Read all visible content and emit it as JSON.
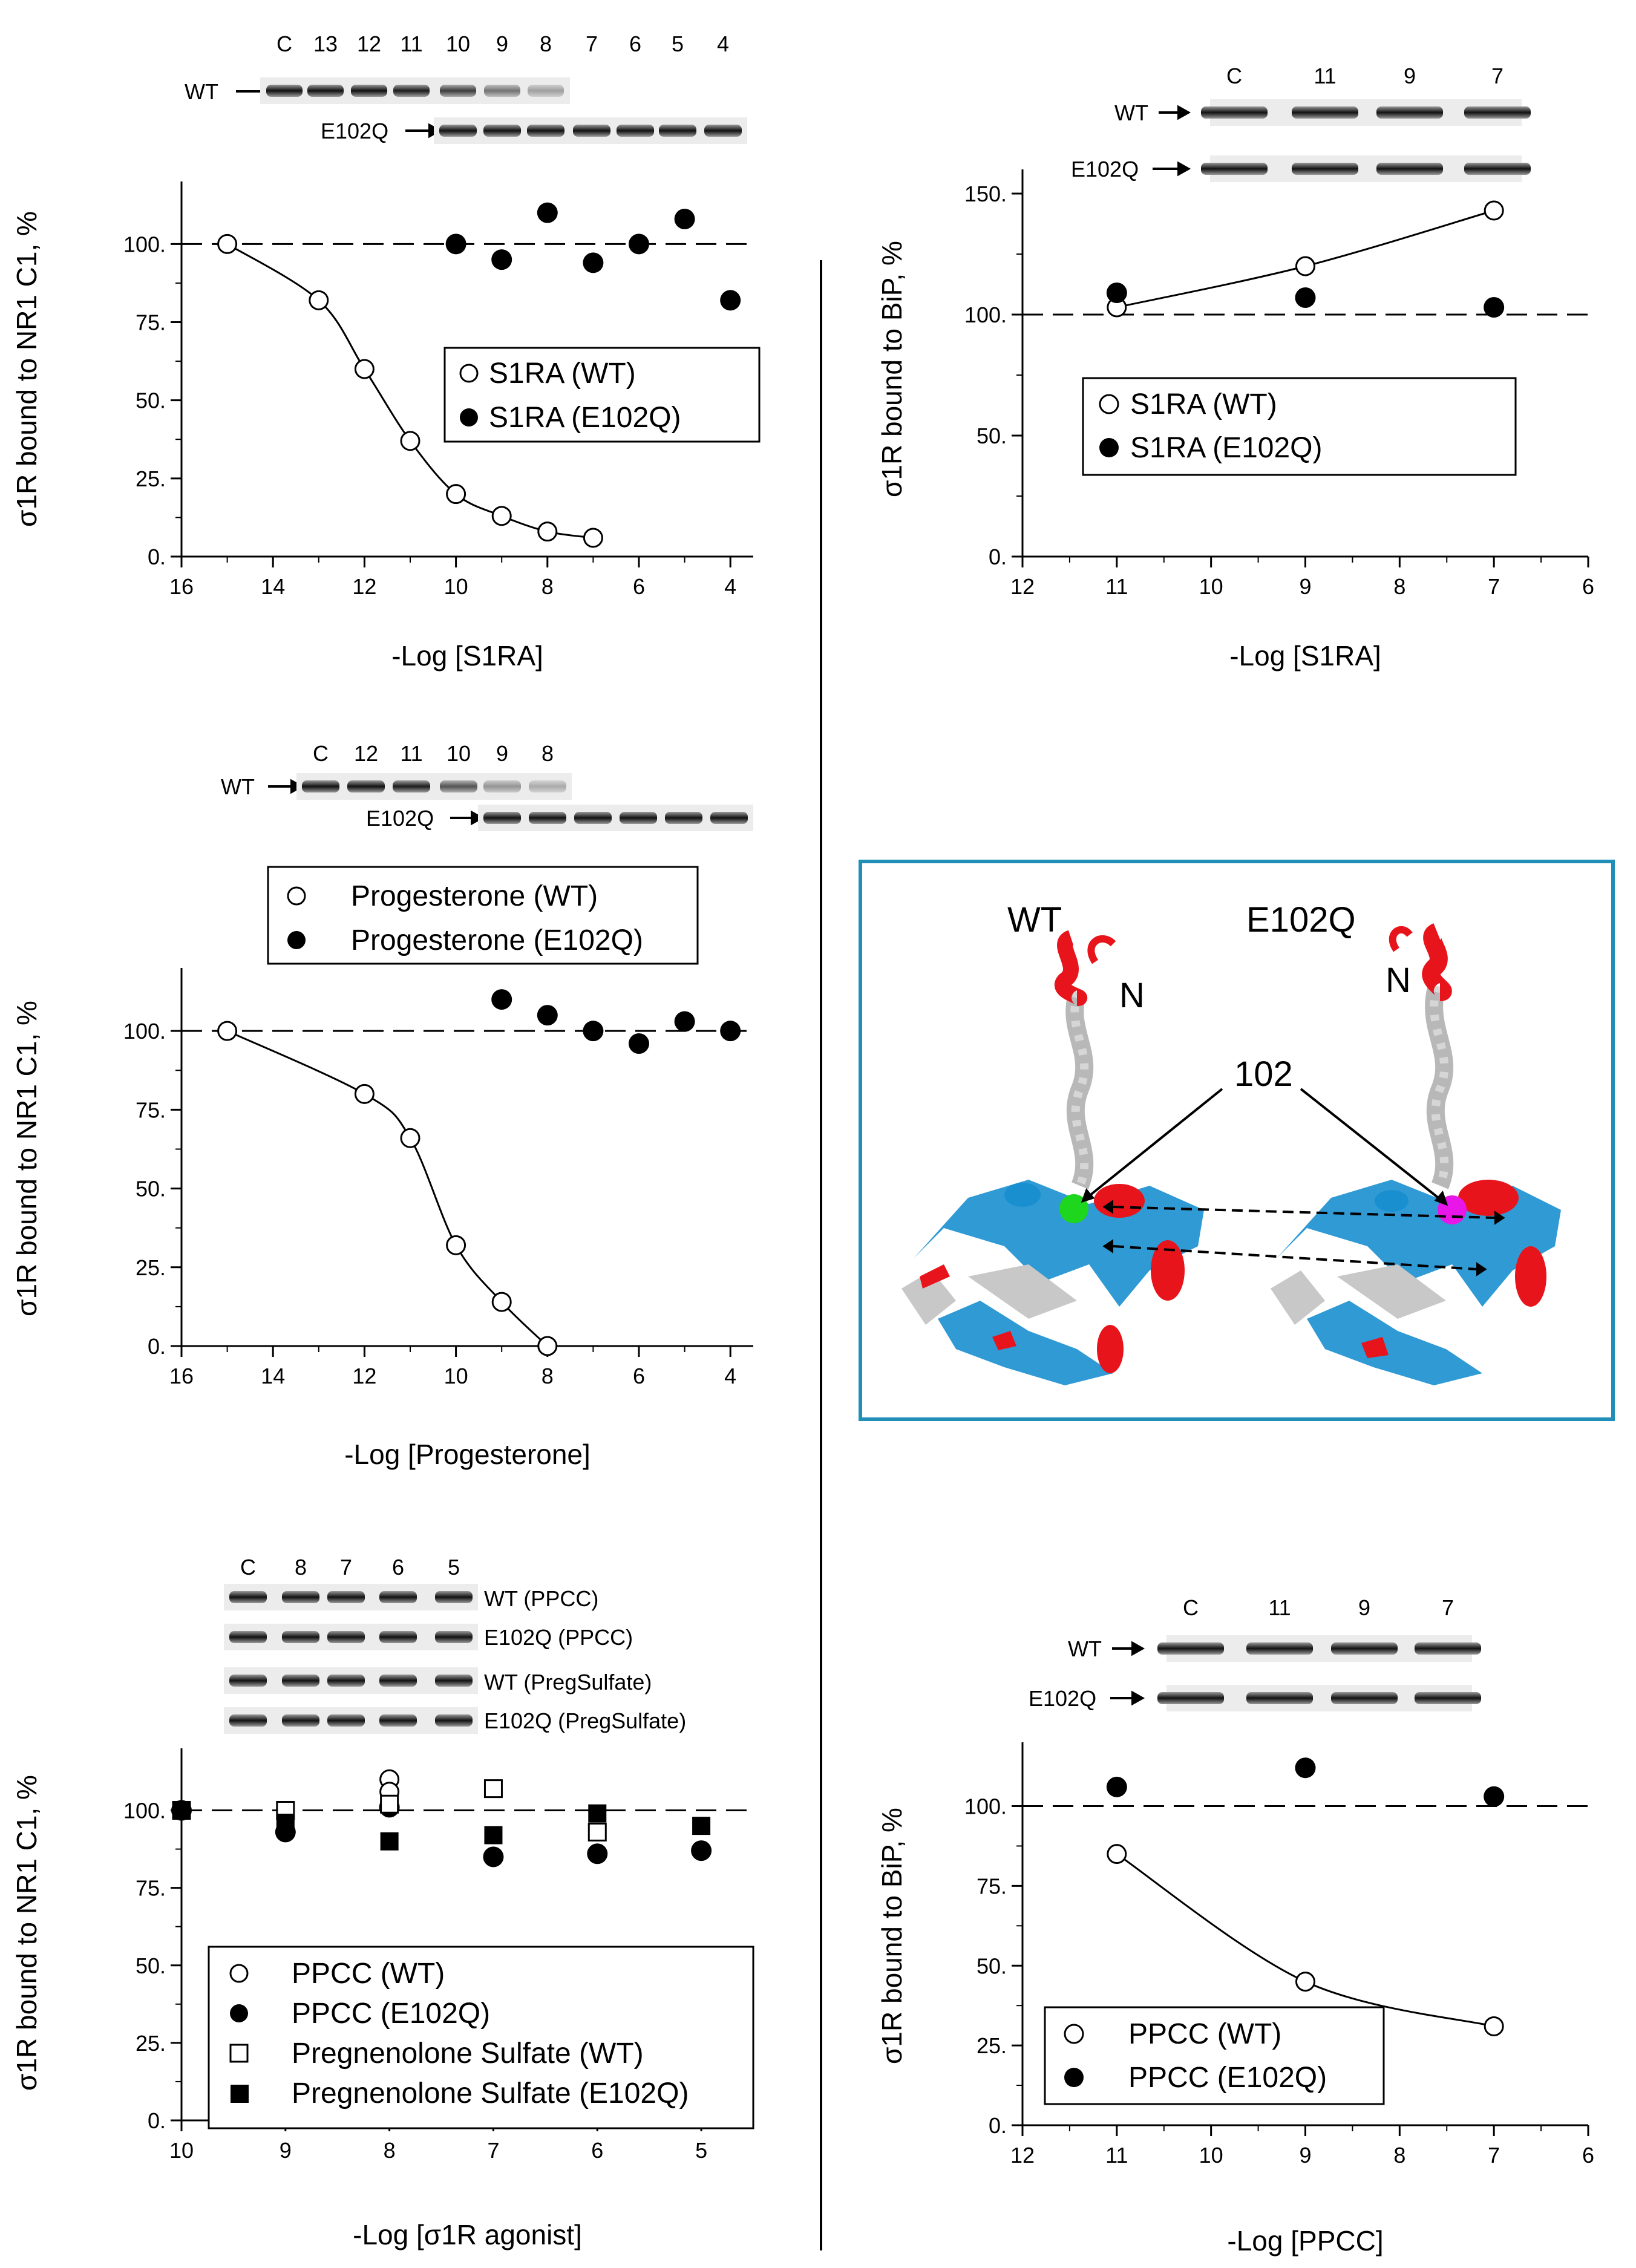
{
  "chart_data": [
    {
      "id": "p1",
      "type": "scatter",
      "xlabel": "-Log [S1RA]",
      "ylabel": "σ1R bound to NR1 C1, %",
      "xlim": [
        16,
        3.5
      ],
      "ylim": [
        0,
        120
      ],
      "xticks": [
        "16",
        "14",
        "12",
        "10",
        "8",
        "6",
        "4"
      ],
      "yticks": [
        "0.",
        "25.",
        "50.",
        "75.",
        "100."
      ],
      "reference_line": 100,
      "series": [
        {
          "name": "S1RA (WT)",
          "marker": "open-circle",
          "fit": "sigmoid",
          "x": [
            15,
            13,
            12,
            11,
            10,
            9,
            8,
            7
          ],
          "y": [
            100,
            82,
            60,
            37,
            20,
            13,
            8,
            6
          ]
        },
        {
          "name": "S1RA (E102Q)",
          "marker": "filled-circle",
          "x": [
            10,
            9,
            8,
            7,
            6,
            5,
            4
          ],
          "y": [
            100,
            95,
            110,
            94,
            100,
            108,
            82
          ]
        }
      ],
      "blot": {
        "lanes": [
          "C",
          "13",
          "12",
          "11",
          "10",
          "9",
          "8",
          "7",
          "6",
          "5",
          "4"
        ],
        "rows": [
          {
            "label": "WT",
            "lanes": 7
          },
          {
            "label": "E102Q",
            "lanes": 7
          }
        ]
      }
    },
    {
      "id": "p2",
      "type": "scatter",
      "xlabel": "-Log [S1RA]",
      "ylabel": "σ1R bound to BiP, %",
      "xlim": [
        12,
        6
      ],
      "ylim": [
        0,
        160
      ],
      "xticks": [
        "12",
        "11",
        "10",
        "9",
        "8",
        "7",
        "6"
      ],
      "yticks": [
        "0.",
        "50.",
        "100.",
        "150."
      ],
      "reference_line": 100,
      "series": [
        {
          "name": "S1RA (WT)",
          "marker": "open-circle",
          "fit": "curve",
          "x": [
            11,
            9,
            7
          ],
          "y": [
            103,
            120,
            143
          ]
        },
        {
          "name": "S1RA (E102Q)",
          "marker": "filled-circle",
          "x": [
            11,
            9,
            7
          ],
          "y": [
            109,
            107,
            103
          ]
        }
      ],
      "blot": {
        "lanes": [
          "C",
          "11",
          "9",
          "7"
        ],
        "rows": [
          {
            "label": "WT"
          },
          {
            "label": "E102Q"
          }
        ]
      }
    },
    {
      "id": "p3",
      "type": "scatter",
      "xlabel": "-Log [Progesterone]",
      "ylabel": "σ1R bound to NR1 C1, %",
      "xlim": [
        16,
        3.5
      ],
      "ylim": [
        0,
        120
      ],
      "xticks": [
        "16",
        "14",
        "12",
        "10",
        "8",
        "6",
        "4"
      ],
      "yticks": [
        "0.",
        "25.",
        "50.",
        "75.",
        "100."
      ],
      "reference_line": 100,
      "series": [
        {
          "name": "Progesterone (WT)",
          "marker": "open-circle",
          "fit": "sigmoid",
          "x": [
            15,
            12,
            11,
            10,
            9,
            8
          ],
          "y": [
            100,
            80,
            66,
            32,
            14,
            0
          ]
        },
        {
          "name": "Progesterone (E102Q)",
          "marker": "filled-circle",
          "x": [
            9,
            8,
            7,
            6,
            5,
            4
          ],
          "y": [
            110,
            105,
            100,
            96,
            103,
            100
          ]
        }
      ],
      "blot": {
        "lanes": [
          "C",
          "12",
          "11",
          "10",
          "9",
          "8"
        ],
        "rows": [
          {
            "label": "WT"
          },
          {
            "label": "E102Q"
          }
        ]
      }
    },
    {
      "id": "p4",
      "type": "scatter",
      "xlabel": "-Log [σ1R agonist]",
      "ylabel": "σ1R bound to NR1 C1, %",
      "xlim": [
        10,
        4.5
      ],
      "ylim": [
        0,
        120
      ],
      "xticks": [
        "10",
        "9",
        "8",
        "7",
        "6",
        "5"
      ],
      "yticks": [
        "0.",
        "25.",
        "50.",
        "75.",
        "100."
      ],
      "reference_line": 100,
      "series": [
        {
          "name": "PPCC (WT)",
          "marker": "open-circle",
          "x": [
            10,
            8,
            8
          ],
          "y": [
            100,
            110,
            106
          ]
        },
        {
          "name": "PPCC (E102Q)",
          "marker": "filled-circle",
          "x": [
            10,
            9,
            8,
            7,
            6,
            5
          ],
          "y": [
            100,
            93,
            101,
            85,
            86,
            87
          ]
        },
        {
          "name": "Pregnenolone Sulfate (WT)",
          "marker": "open-square",
          "x": [
            10,
            9,
            8,
            7,
            6
          ],
          "y": [
            100,
            100,
            102,
            107,
            93
          ]
        },
        {
          "name": "Pregnenolone Sulfate (E102Q)",
          "marker": "filled-square",
          "x": [
            10,
            9,
            8,
            7,
            6,
            5
          ],
          "y": [
            100,
            96,
            90,
            92,
            99,
            95
          ]
        }
      ],
      "blot": {
        "lanes": [
          "C",
          "8",
          "7",
          "6",
          "5"
        ],
        "rows": [
          {
            "label": "WT (PPCC)"
          },
          {
            "label": "E102Q (PPCC)"
          },
          {
            "label": "WT (PregSulfate)"
          },
          {
            "label": "E102Q (PregSulfate)"
          }
        ]
      }
    },
    {
      "id": "p5",
      "type": "scatter",
      "xlabel": "-Log [PPCC]",
      "ylabel": "σ1R bound to BiP, %",
      "xlim": [
        12,
        6
      ],
      "ylim": [
        0,
        120
      ],
      "xticks": [
        "12",
        "11",
        "10",
        "9",
        "8",
        "7",
        "6"
      ],
      "yticks": [
        "0.",
        "25.",
        "50.",
        "75.",
        "100."
      ],
      "reference_line": 100,
      "series": [
        {
          "name": "PPCC (WT)",
          "marker": "open-circle",
          "fit": "curve",
          "x": [
            11,
            9,
            7
          ],
          "y": [
            85,
            45,
            31
          ]
        },
        {
          "name": "PPCC (E102Q)",
          "marker": "filled-circle",
          "x": [
            11,
            9,
            7
          ],
          "y": [
            106,
            112,
            103
          ]
        }
      ],
      "blot": {
        "lanes": [
          "C",
          "11",
          "9",
          "7"
        ],
        "rows": [
          {
            "label": "WT"
          },
          {
            "label": "E102Q"
          }
        ]
      }
    }
  ],
  "structure": {
    "labels": {
      "wt": "WT",
      "mutant": "E102Q",
      "n_wt": "N",
      "n_mut": "N",
      "residue": "102"
    },
    "colors": {
      "border": "#1f8fb8",
      "helix_red": "#e8141c",
      "sheet_blue": "#1a8fd0",
      "coil_gray": "#c8c8c8",
      "wt_ball": "#1ed61e",
      "mut_ball": "#e816e8"
    }
  }
}
